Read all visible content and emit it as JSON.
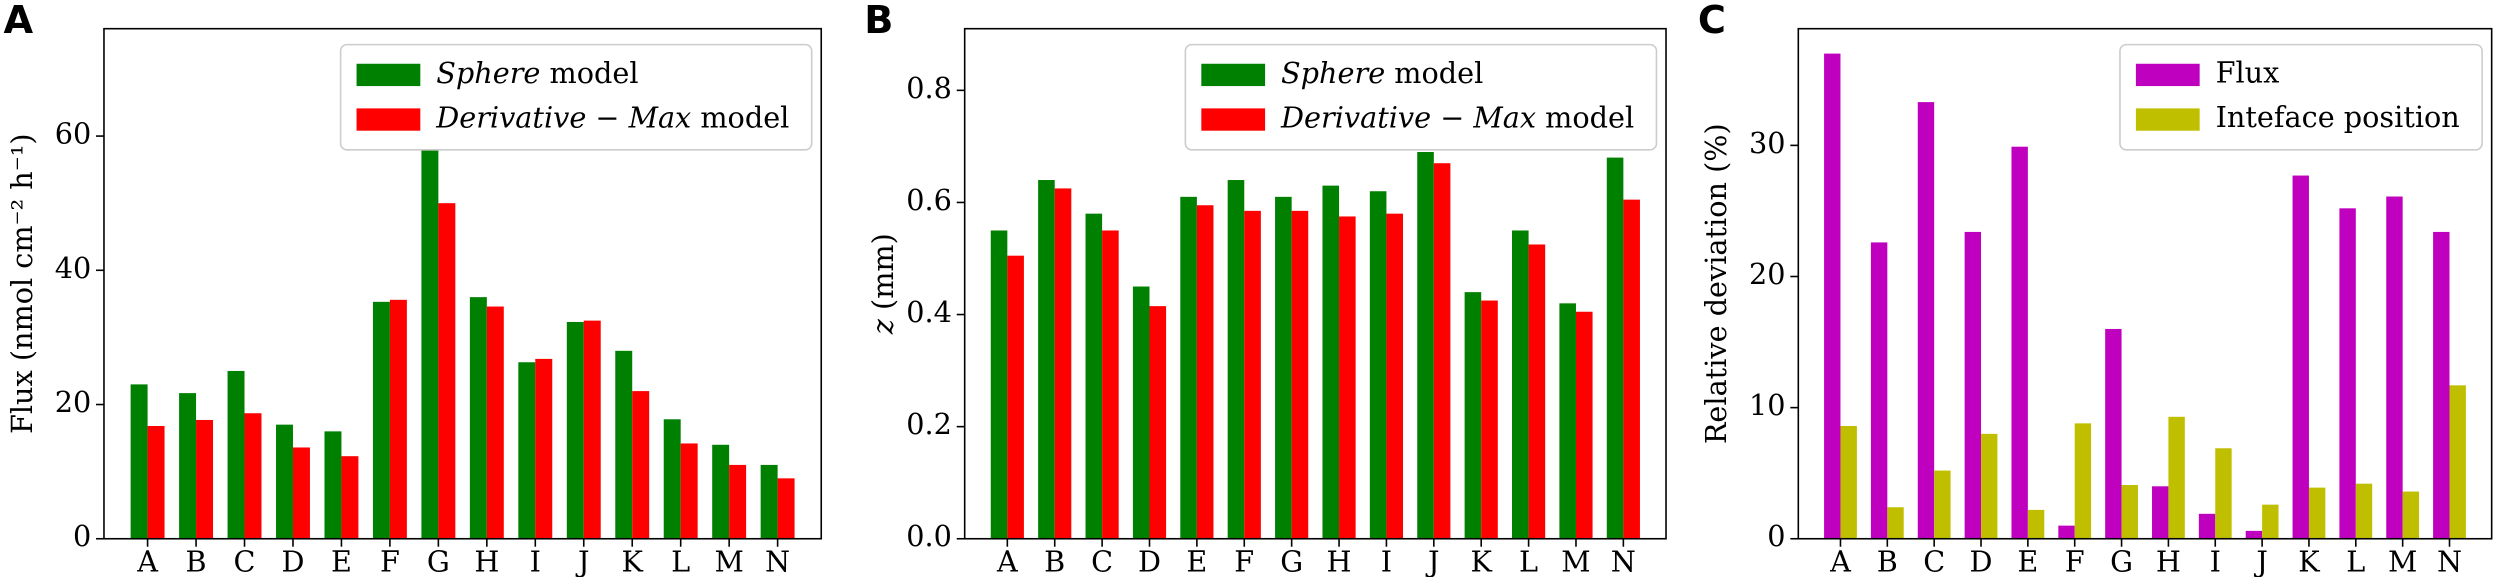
{
  "chart_data": [
    {
      "type": "bar",
      "panel": "A",
      "ylabel": "Flux  (nmol cm⁻² h⁻¹)",
      "categories": [
        "A",
        "B",
        "C",
        "D",
        "E",
        "F",
        "G",
        "H",
        "I",
        "J",
        "K",
        "L",
        "M",
        "N"
      ],
      "series": [
        {
          "name": "Sphere model",
          "italic_lead": true,
          "color": "#008000",
          "values": [
            23,
            21.7,
            25,
            17,
            16,
            35.3,
            58,
            36,
            26.3,
            32.3,
            28,
            17.8,
            14,
            11
          ]
        },
        {
          "name": "Derivative − Max model",
          "italic_lead": true,
          "color": "#ff0000",
          "values": [
            16.8,
            17.7,
            18.7,
            13.6,
            12.3,
            35.6,
            50,
            34.6,
            26.8,
            32.5,
            22,
            14.2,
            11,
            9
          ]
        }
      ],
      "ylim": [
        0,
        76
      ],
      "yticks": [
        0,
        20,
        40,
        60
      ],
      "legend": "upper right"
    },
    {
      "type": "bar",
      "panel": "B",
      "ylabel": "z (mm)",
      "ylabel_italic_lead": true,
      "categories": [
        "A",
        "B",
        "C",
        "D",
        "E",
        "F",
        "G",
        "H",
        "I",
        "J",
        "K",
        "L",
        "M",
        "N"
      ],
      "series": [
        {
          "name": "Sphere model",
          "italic_lead": true,
          "color": "#008000",
          "values": [
            0.55,
            0.64,
            0.58,
            0.45,
            0.61,
            0.64,
            0.61,
            0.63,
            0.62,
            0.69,
            0.44,
            0.55,
            0.42,
            0.68
          ]
        },
        {
          "name": "Derivative − Max model",
          "italic_lead": true,
          "color": "#ff0000",
          "values": [
            0.505,
            0.625,
            0.55,
            0.415,
            0.595,
            0.585,
            0.585,
            0.575,
            0.58,
            0.67,
            0.425,
            0.525,
            0.405,
            0.605
          ]
        }
      ],
      "ylim": [
        0,
        0.91
      ],
      "yticks": [
        {
          "value": 0,
          "label": "0.0"
        },
        0.2,
        0.4,
        0.6,
        0.8
      ],
      "legend": "upper right"
    },
    {
      "type": "bar",
      "panel": "C",
      "ylabel": "Relative deviation (%)",
      "categories": [
        "A",
        "B",
        "C",
        "D",
        "E",
        "F",
        "G",
        "H",
        "I",
        "J",
        "K",
        "L",
        "M",
        "N"
      ],
      "series": [
        {
          "name": "Flux",
          "color": "#bf00bf",
          "values": [
            37,
            22.6,
            33.3,
            23.4,
            29.9,
            1.0,
            16,
            4,
            1.9,
            0.6,
            27.7,
            25.2,
            26.1,
            23.4
          ]
        },
        {
          "name": "Inteface position",
          "color": "#bfbf00",
          "values": [
            8.6,
            2.4,
            5.2,
            8,
            2.2,
            8.8,
            4.1,
            9.3,
            6.9,
            2.6,
            3.9,
            4.2,
            3.6,
            11.7
          ]
        }
      ],
      "ylim": [
        0,
        38.9
      ],
      "yticks": [
        0,
        10,
        20,
        30
      ],
      "legend": "upper right"
    }
  ]
}
